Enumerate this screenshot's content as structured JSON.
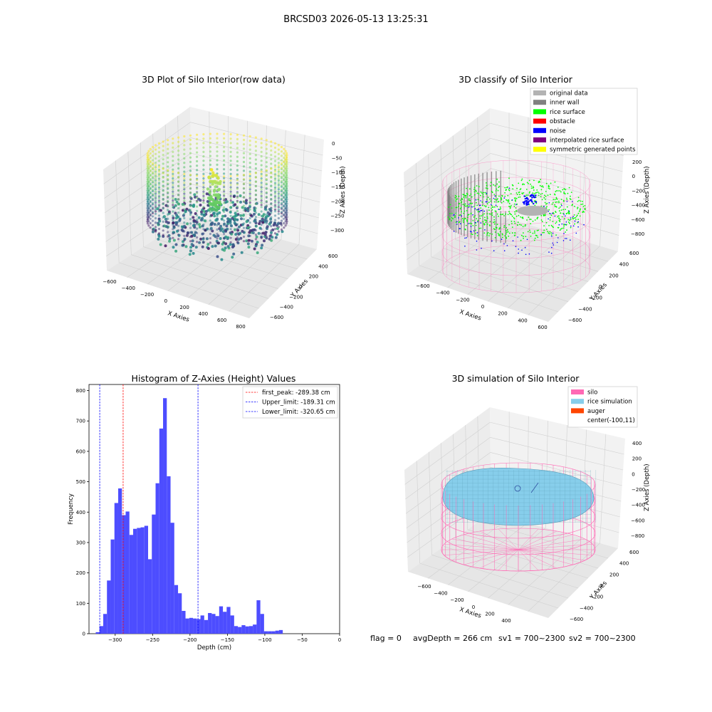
{
  "figure": {
    "suptitle": "BRCSD03 2026-05-13 13:25:31",
    "footer": {
      "flag": "flag = 0",
      "avg_depth": "avgDepth = 266 cm",
      "sv1": "sv1 = 700~2300",
      "sv2": "sv2 = 700~2300"
    }
  },
  "panels": {
    "raw": {
      "title": "3D Plot of Silo Interior(row data)",
      "x_label": "X Axies",
      "y_label": "Y Axies",
      "z_label": "Z Axies (Depth)",
      "x_ticks": [
        "−600",
        "−400",
        "−200",
        "0",
        "200",
        "400",
        "600",
        "800"
      ],
      "y_ticks": [
        "600",
        "400",
        "200",
        "0",
        "−200",
        "−400",
        "−600"
      ],
      "z_ticks": [
        "0",
        "−50",
        "−100",
        "−150",
        "−200",
        "−250",
        "−300"
      ]
    },
    "classify": {
      "title": "3D classify of Silo Interior",
      "x_label": "X Axies",
      "y_label": "Y Axies",
      "z_label": "Z Axies (Depth)",
      "x_ticks": [
        "−600",
        "−400",
        "−200",
        "0",
        "200",
        "400",
        "600"
      ],
      "y_ticks": [
        "600",
        "400",
        "200",
        "0",
        "−200",
        "−400",
        "−600"
      ],
      "z_ticks": [
        "200",
        "0",
        "−200",
        "−400",
        "−600",
        "−800"
      ],
      "legend": [
        {
          "label": "original data",
          "color": "#b3b3b3"
        },
        {
          "label": "inner wall",
          "color": "#808080"
        },
        {
          "label": "rice surface",
          "color": "#00ff00"
        },
        {
          "label": "obstacle",
          "color": "#ff0000"
        },
        {
          "label": "noise",
          "color": "#0000ff"
        },
        {
          "label": "interpolated rice surface",
          "color": "#800080"
        },
        {
          "label": "symmetric generated points",
          "color": "#ffff00"
        }
      ]
    },
    "simulation": {
      "title": "3D simulation of Silo Interior",
      "x_label": "X Axies",
      "y_label": "Y Axies",
      "z_label": "Z Axies (Depth)",
      "x_ticks": [
        "−600",
        "−400",
        "−200",
        "0",
        "200",
        "400"
      ],
      "y_ticks": [
        "600",
        "400",
        "200",
        "0",
        "−200",
        "−400",
        "−600"
      ],
      "z_ticks": [
        "400",
        "200",
        "0",
        "−200",
        "−400",
        "−600",
        "−800"
      ],
      "legend": [
        {
          "label": "silo",
          "color": "#ff69b4"
        },
        {
          "label": "rice simulation",
          "color": "#87ceeb"
        },
        {
          "label": "auger",
          "color": "#ff4500"
        },
        {
          "label": "center(-100,11)",
          "color": ""
        }
      ]
    }
  },
  "chart_data": {
    "type": "bar",
    "title": "Histogram of Z-Axies (Height) Values",
    "xlabel": "Depth (cm)",
    "ylabel": "Frequency",
    "xlim": [
      -335,
      0
    ],
    "ylim": [
      0,
      820
    ],
    "x_ticks": [
      -300,
      -250,
      -200,
      -150,
      -100,
      -50,
      0
    ],
    "y_ticks": [
      0,
      100,
      200,
      300,
      400,
      500,
      600,
      700,
      800
    ],
    "bin_start": -326,
    "bin_width": 5,
    "values": [
      5,
      25,
      65,
      175,
      310,
      430,
      478,
      390,
      402,
      325,
      345,
      348,
      350,
      355,
      245,
      392,
      495,
      675,
      775,
      518,
      365,
      160,
      133,
      75,
      50,
      52,
      50,
      48,
      60,
      45,
      68,
      65,
      58,
      90,
      72,
      88,
      60,
      25,
      22,
      28,
      24,
      25,
      30,
      110,
      65,
      8,
      8,
      8,
      10,
      12
    ],
    "vlines": [
      {
        "name": "first_peak: -289.38 cm",
        "x": -289.38,
        "color": "#ff0000"
      },
      {
        "name": "Upper_limit: -189.31 cm",
        "x": -189.31,
        "color": "#0000ff"
      },
      {
        "name": "Lower_limit: -320.65 cm",
        "x": -320.65,
        "color": "#0000ff"
      }
    ],
    "bar_color": "#4d4dff",
    "legend_position": "upper right"
  }
}
